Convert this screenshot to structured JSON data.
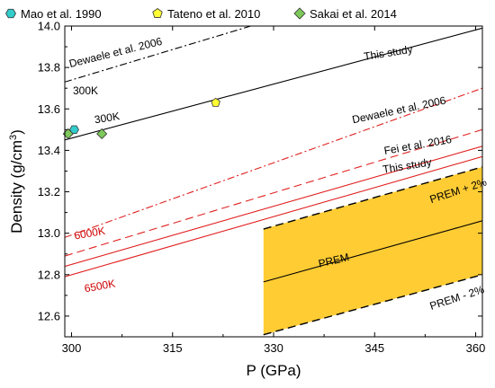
{
  "chart_data": {
    "type": "line",
    "xlabel": "P (GPa)",
    "ylabel_main": "Density (g/cm",
    "ylabel_sup": "3",
    "ylabel_close": ")",
    "xlim": [
      299,
      361
    ],
    "ylim": [
      12.5,
      14.0
    ],
    "xticks": [
      300,
      315,
      330,
      345,
      360
    ],
    "yticks": [
      12.6,
      12.8,
      13.0,
      13.2,
      13.4,
      13.6,
      13.8,
      14.0
    ],
    "grid": false,
    "legend_position": "top",
    "legend": [
      {
        "label": "Mao et al. 1990",
        "marker": "hexagon",
        "color": "#33cccc"
      },
      {
        "label": "Tateno et al. 2010",
        "marker": "pentagon",
        "color": "#ffff33"
      },
      {
        "label": "Sakai et al. 2014",
        "marker": "diamond",
        "color": "#7dc85a"
      }
    ],
    "series": [
      {
        "key": "dewaele_300k",
        "style": "dashdot",
        "color": "#000000",
        "x": [
          299,
          326.6
        ],
        "y": [
          13.73,
          14.0
        ]
      },
      {
        "key": "this_study_300k",
        "style": "solid",
        "color": "#000000",
        "x": [
          299,
          361
        ],
        "y": [
          13.45,
          13.99
        ]
      },
      {
        "key": "dewaele_6000k",
        "style": "dashdot",
        "color": "#e02020",
        "x": [
          299,
          361
        ],
        "y": [
          12.98,
          13.7
        ]
      },
      {
        "key": "fei_6000k",
        "style": "dashed",
        "color": "#e02020",
        "x": [
          299,
          361
        ],
        "y": [
          12.89,
          13.5
        ]
      },
      {
        "key": "this_study_6000k",
        "style": "solid",
        "color": "#e02020",
        "x": [
          299,
          361
        ],
        "y": [
          12.84,
          13.42
        ]
      },
      {
        "key": "this_study_6500k",
        "style": "solid",
        "color": "#e02020",
        "x": [
          299,
          361
        ],
        "y": [
          12.79,
          13.37
        ]
      },
      {
        "key": "prem",
        "style": "solid",
        "color": "#000000",
        "x": [
          328.5,
          361
        ],
        "y": [
          12.765,
          13.06
        ]
      },
      {
        "key": "prem_plus",
        "style": "dashed",
        "color": "#000000",
        "x": [
          328.5,
          361
        ],
        "y": [
          13.02,
          13.32
        ]
      },
      {
        "key": "prem_minus",
        "style": "dashed",
        "color": "#000000",
        "x": [
          328.5,
          361
        ],
        "y": [
          12.51,
          12.8
        ]
      }
    ],
    "band": {
      "color": "#ffcc33",
      "x": [
        328.5,
        361
      ],
      "upper": [
        13.02,
        13.32
      ],
      "lower": [
        12.51,
        12.8
      ]
    },
    "points": [
      {
        "marker": "hexagon",
        "color": "#33cccc",
        "x": 300.4,
        "y": 13.5
      },
      {
        "marker": "pentagon",
        "color": "#ffff33",
        "x": 321.4,
        "y": 13.63
      },
      {
        "marker": "diamond",
        "color": "#7dc85a",
        "x": 299.5,
        "y": 13.48
      },
      {
        "marker": "diamond",
        "color": "#7dc85a",
        "x": 304.5,
        "y": 13.48
      }
    ],
    "annotations": [
      {
        "text": "Dewaele et al. 2006",
        "color": "#000000",
        "x": 299.8,
        "y": 13.8,
        "rotate": -14
      },
      {
        "text": "300K",
        "color": "#000000",
        "x": 300.2,
        "y": 13.67,
        "rotate": 0
      },
      {
        "text": "This study",
        "color": "#000000",
        "x": 343.5,
        "y": 13.835,
        "rotate": -9
      },
      {
        "text": "300K",
        "color": "#000000",
        "x": 303.5,
        "y": 13.53,
        "rotate": -9
      },
      {
        "text": "Dewaele et al. 2006",
        "color": "#000000",
        "x": 341.8,
        "y": 13.53,
        "rotate": -12
      },
      {
        "text": "Fei et al. 2016",
        "color": "#000000",
        "x": 346.5,
        "y": 13.38,
        "rotate": -10
      },
      {
        "text": "This study",
        "color": "#000000",
        "x": 346.3,
        "y": 13.29,
        "rotate": -9
      },
      {
        "text": "6000K",
        "color": "#cc0000",
        "x": 300.5,
        "y": 12.97,
        "rotate": -10
      },
      {
        "text": "6500K",
        "color": "#cc0000",
        "x": 302.0,
        "y": 12.715,
        "rotate": -10
      },
      {
        "text": "PREM + 2%",
        "color": "#000000",
        "x": 353.4,
        "y": 13.145,
        "rotate": -18
      },
      {
        "text": "PREM",
        "color": "#000000",
        "x": 336.8,
        "y": 12.835,
        "rotate": -13
      },
      {
        "text": "PREM - 2%",
        "color": "#000000",
        "x": 353.4,
        "y": 12.63,
        "rotate": -18
      }
    ]
  }
}
